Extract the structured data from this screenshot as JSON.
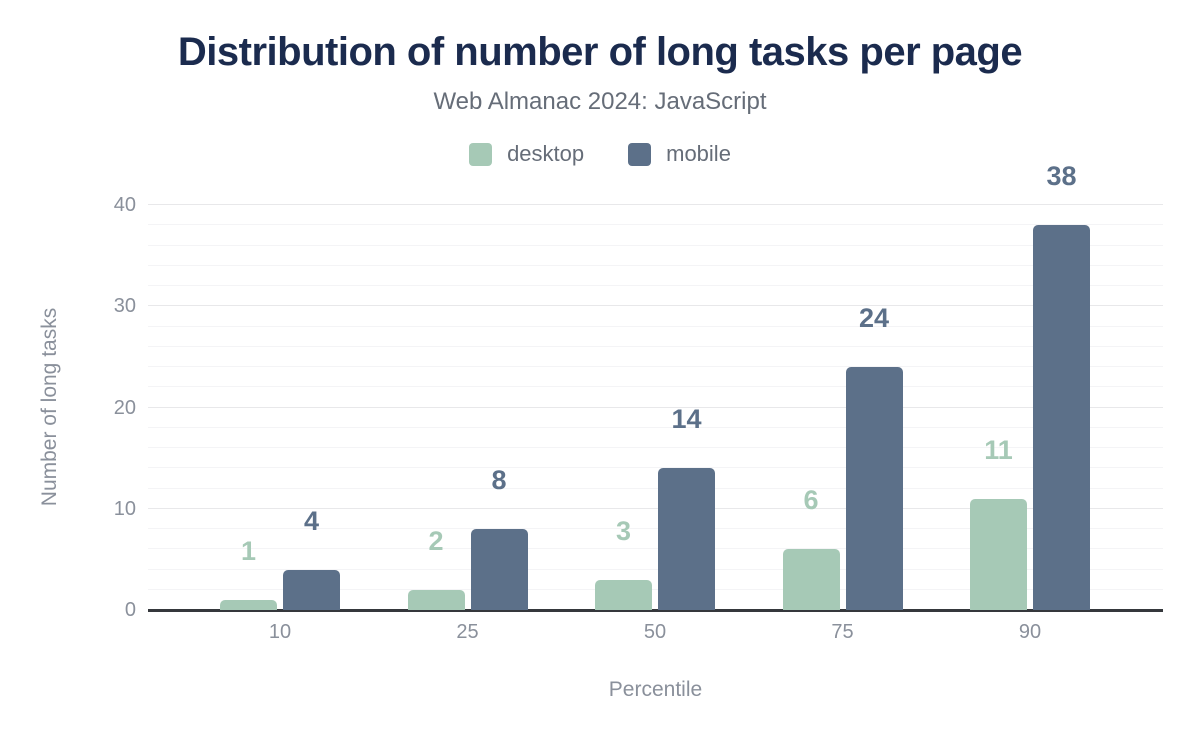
{
  "title": "Distribution of number of long tasks per page",
  "subtitle": "Web Almanac 2024: JavaScript",
  "colors": {
    "title": "#1b2b4e",
    "subtitle": "#666d78",
    "axis_text": "#8a909b",
    "axis_line": "#35383c",
    "desktop": "#a6c9b6",
    "mobile": "#5c7089"
  },
  "chart_data": {
    "type": "bar",
    "title": "Distribution of number of long tasks per page",
    "subtitle": "Web Almanac 2024: JavaScript",
    "categories": [
      "10",
      "25",
      "50",
      "75",
      "90"
    ],
    "series": [
      {
        "name": "desktop",
        "color": "#a6c9b6",
        "values": [
          1,
          2,
          3,
          6,
          11
        ]
      },
      {
        "name": "mobile",
        "color": "#5c7089",
        "values": [
          4,
          8,
          14,
          24,
          38
        ]
      }
    ],
    "xlabel": "Percentile",
    "ylabel": "Number of long tasks",
    "ylim": [
      0,
      40
    ],
    "yticks": [
      0,
      10,
      20,
      30,
      40
    ],
    "grid": "horizontal",
    "grid_minor_step": 2,
    "grid_major_step": 10,
    "legend_position": "top",
    "data_labels": true
  }
}
